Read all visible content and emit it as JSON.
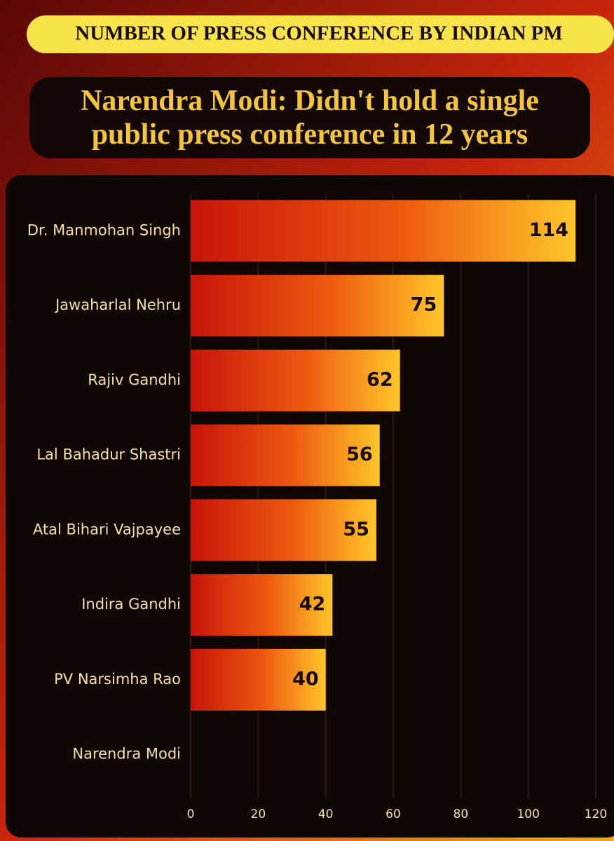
{
  "chart_data": {
    "type": "hbar",
    "title": "NUMBER OF PRESS CONFERENCE BY INDIAN PM",
    "subtitle": "Narendra Modi: Didn't hold a single public press conference in 12 years",
    "categories": [
      "Dr. Manmohan Singh",
      "Jawaharlal Nehru",
      "Rajiv Gandhi",
      "Lal Bahadur Shastri",
      "Atal Bihari Vajpayee",
      "Indira Gandhi",
      "PV Narsimha Rao",
      "Narendra Modi"
    ],
    "values": [
      114,
      75,
      62,
      56,
      55,
      42,
      40,
      0
    ],
    "xlim": [
      0,
      120
    ],
    "xticks": [
      0,
      20,
      40,
      60,
      80,
      100,
      120
    ],
    "grid": true
  }
}
